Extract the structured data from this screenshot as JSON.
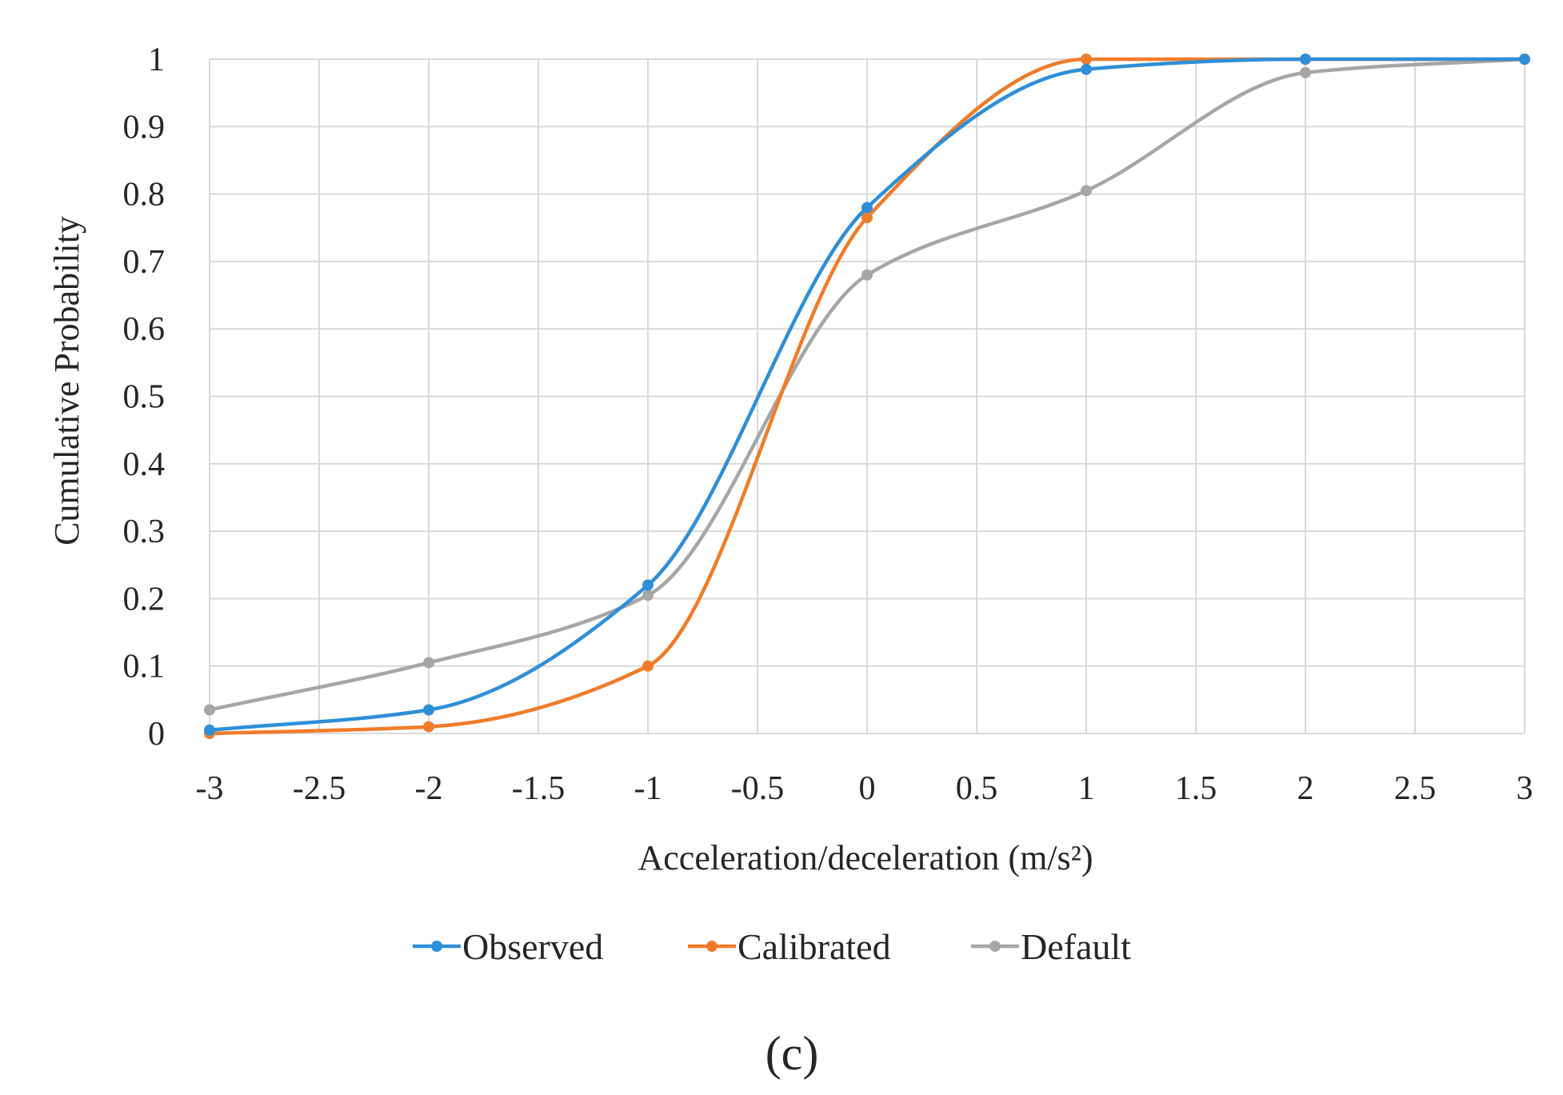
{
  "chart_data": {
    "type": "line",
    "title": "",
    "xlabel": "Acceleration/deceleration (m/s²)",
    "ylabel": "Cumulative Probability",
    "xlim": [
      -3,
      3
    ],
    "ylim": [
      0,
      1
    ],
    "x_ticks": [
      "-3",
      "-2.5",
      "-2",
      "-1.5",
      "-1",
      "-0.5",
      "0",
      "0.5",
      "1",
      "1.5",
      "2",
      "2.5",
      "3"
    ],
    "y_ticks": [
      "0",
      "0.1",
      "0.2",
      "0.3",
      "0.4",
      "0.5",
      "0.6",
      "0.7",
      "0.8",
      "0.9",
      "1"
    ],
    "x_values": [
      -3,
      -2,
      -1,
      0,
      1,
      2,
      3
    ],
    "grid": true,
    "legend_position": "bottom",
    "series": [
      {
        "name": "Observed",
        "color": "#2E8FD8",
        "values": [
          0.005,
          0.035,
          0.22,
          0.78,
          0.985,
          1.0,
          1.0
        ]
      },
      {
        "name": "Calibrated",
        "color": "#F07C2A",
        "values": [
          0.0,
          0.01,
          0.1,
          0.765,
          1.0,
          1.0,
          1.0
        ]
      },
      {
        "name": "Default",
        "color": "#A6A6A6",
        "values": [
          0.035,
          0.105,
          0.205,
          0.68,
          0.805,
          0.98,
          1.0
        ]
      }
    ]
  },
  "caption": "(c)"
}
